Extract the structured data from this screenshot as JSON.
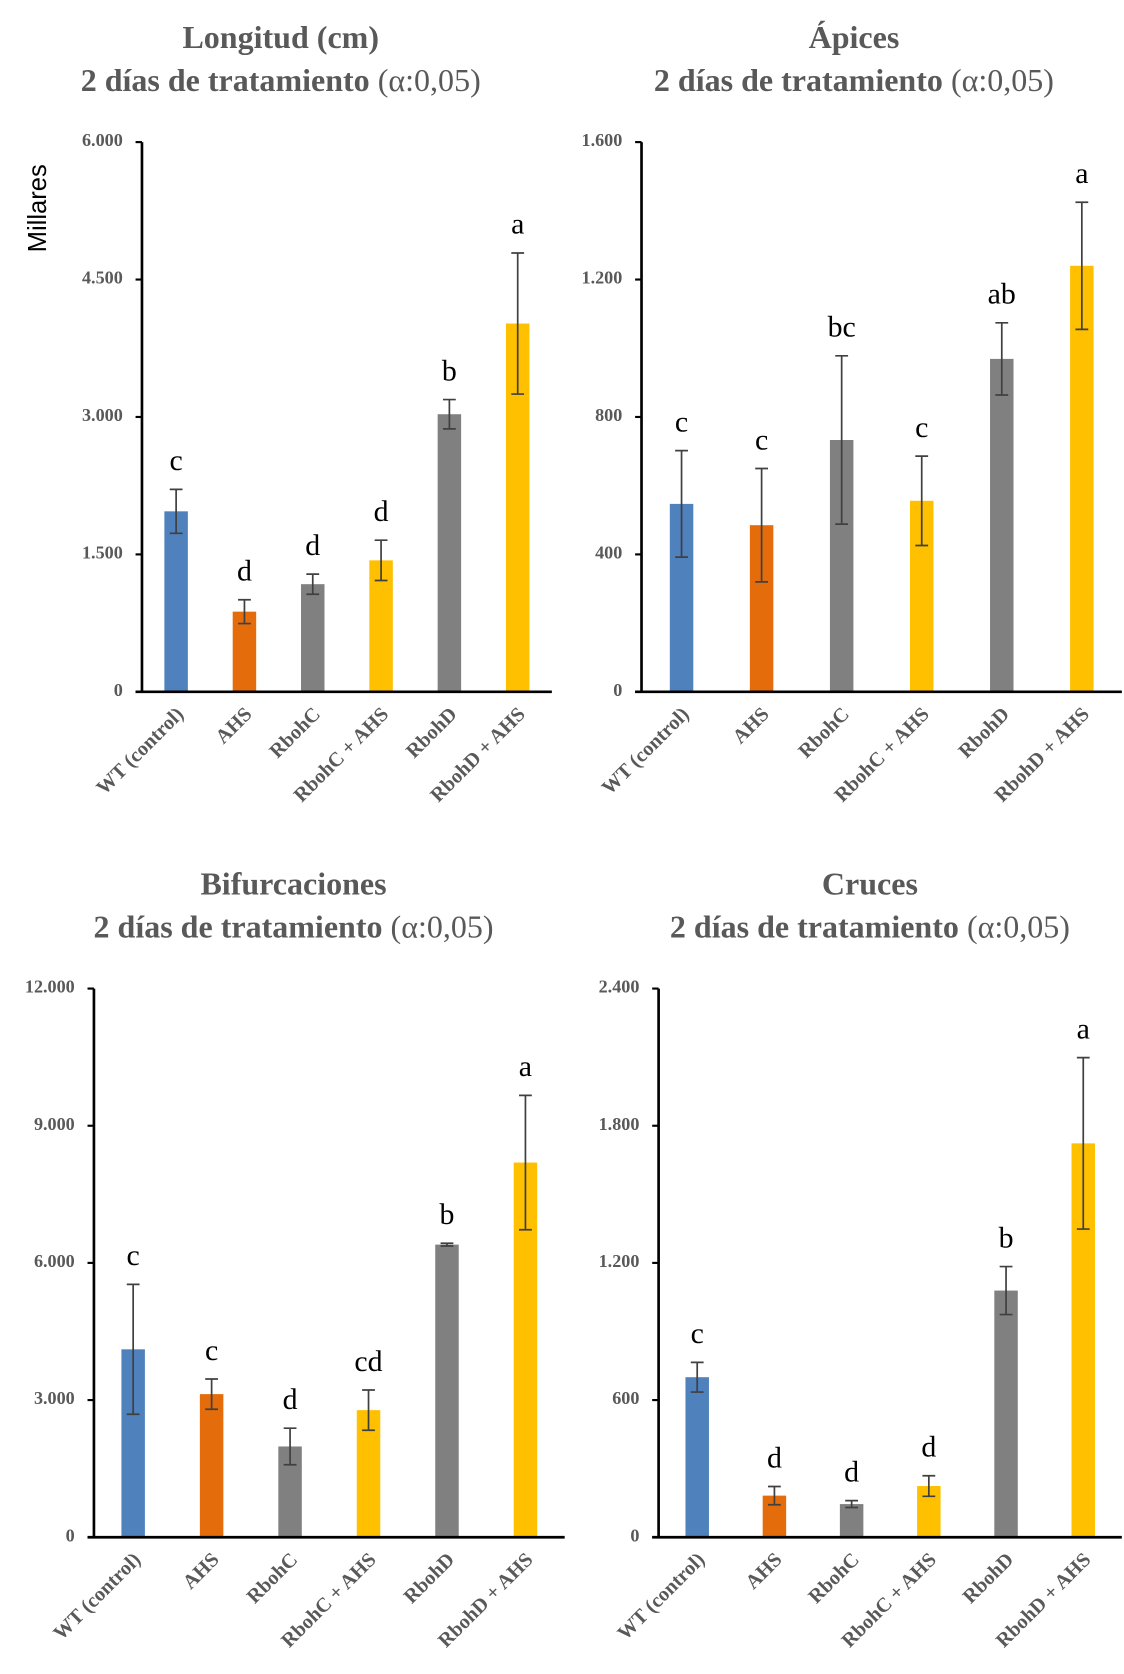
{
  "chart_data": [
    {
      "type": "bar",
      "title": "Longitud (cm)",
      "subtitle": "2 días de tratamiento",
      "subtitle_note": "(α:0,05)",
      "y_label": "Millares",
      "categories": [
        "WT (control)",
        "AHS",
        "RbohC",
        "RbohC + AHS",
        "RbohD",
        "RbohD + AHS"
      ],
      "values": [
        1970,
        875,
        1175,
        1435,
        3030,
        4020
      ],
      "errors": [
        240,
        130,
        110,
        220,
        160,
        770
      ],
      "annotations": [
        "c",
        "d",
        "d",
        "d",
        "b",
        "a"
      ],
      "colors": [
        "#4f81bd",
        "#e46c0a",
        "#808080",
        "#ffc000",
        "#808080",
        "#ffc000"
      ],
      "ylim": [
        0,
        6000
      ],
      "yticks": [
        0,
        {
          "value": 1500,
          "label": "1.500"
        },
        {
          "value": 3000,
          "label": "3.000"
        },
        {
          "value": 4500,
          "label": "4.500"
        },
        {
          "value": 6000,
          "label": "6.000"
        }
      ]
    },
    {
      "type": "bar",
      "title": "Ápices",
      "subtitle": "2 días de tratamiento",
      "subtitle_note": "(α:0,05)",
      "categories": [
        "WT (control)",
        "AHS",
        "RbohC",
        "RbohC + AHS",
        "RbohD",
        "RbohD + AHS"
      ],
      "values": [
        547,
        485,
        733,
        556,
        969,
        1240
      ],
      "errors": [
        155,
        165,
        245,
        130,
        105,
        185
      ],
      "annotations": [
        "c",
        "c",
        "bc",
        "c",
        "ab",
        "a"
      ],
      "colors": [
        "#4f81bd",
        "#e46c0a",
        "#808080",
        "#ffc000",
        "#808080",
        "#ffc000"
      ],
      "ylim": [
        0,
        1600
      ],
      "yticks": [
        0,
        400,
        800,
        {
          "value": 1200,
          "label": "1.200"
        },
        {
          "value": 1600,
          "label": "1.600"
        }
      ]
    },
    {
      "type": "bar",
      "title": "Bifurcaciones",
      "subtitle": "2 días de tratamiento",
      "subtitle_note": "(α:0,05)",
      "categories": [
        "WT (control)",
        "AHS",
        "RbohC",
        "RbohC + AHS",
        "RbohD",
        "RbohD + AHS"
      ],
      "values": [
        4110,
        3130,
        1985,
        2780,
        6400,
        8195
      ],
      "errors": [
        1420,
        330,
        400,
        440,
        30,
        1470
      ],
      "annotations": [
        "c",
        "c",
        "d",
        "cd",
        "b",
        "a"
      ],
      "colors": [
        "#4f81bd",
        "#e46c0a",
        "#808080",
        "#ffc000",
        "#808080",
        "#ffc000"
      ],
      "ylim": [
        0,
        12000
      ],
      "yticks": [
        0,
        {
          "value": 3000,
          "label": "3.000"
        },
        {
          "value": 6000,
          "label": "6.000"
        },
        {
          "value": 9000,
          "label": "9.000"
        },
        {
          "value": 12000,
          "label": "12.000"
        }
      ]
    },
    {
      "type": "bar",
      "title": "Cruces",
      "subtitle": "2 días de tratamiento",
      "subtitle_note": "(α:0,05)",
      "categories": [
        "WT (control)",
        "AHS",
        "RbohC",
        "RbohC + AHS",
        "RbohD",
        "RbohD + AHS"
      ],
      "values": [
        700,
        182,
        145,
        224,
        1079,
        1723
      ],
      "errors": [
        65,
        40,
        15,
        45,
        105,
        375
      ],
      "annotations": [
        "c",
        "d",
        "d",
        "d",
        "b",
        "a"
      ],
      "colors": [
        "#4f81bd",
        "#e46c0a",
        "#808080",
        "#ffc000",
        "#808080",
        "#ffc000"
      ],
      "ylim": [
        0,
        2400
      ],
      "yticks": [
        0,
        600,
        {
          "value": 1200,
          "label": "1.200"
        },
        {
          "value": 1800,
          "label": "1.800"
        },
        {
          "value": 2400,
          "label": "2.400"
        }
      ]
    }
  ]
}
